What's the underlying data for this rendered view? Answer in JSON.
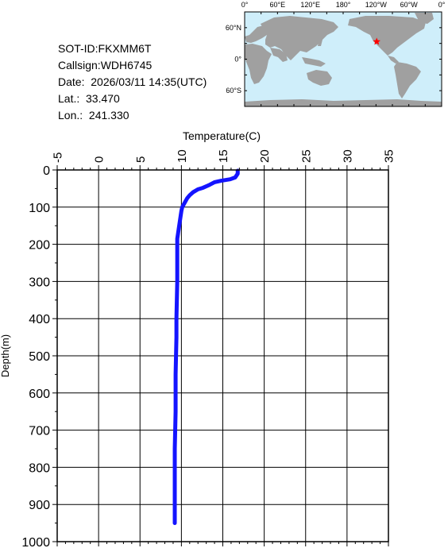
{
  "info": {
    "sot_id": "SOT-ID:FKXMM6T",
    "callsign": "Callsign:WDH6745",
    "date": "Date:  2026/03/11 14:35(UTC)",
    "lat": "Lat.:  33.470",
    "lon": "Lon.:  241.330"
  },
  "map": {
    "lon_labels": [
      "0°",
      "60°E",
      "120°E",
      "180°",
      "120°W",
      "60°W",
      "0°"
    ],
    "lat_labels": [
      "60°N",
      "0°",
      "60°S"
    ],
    "ocean_color": "#cfeefa",
    "land_color": "#a0a0a0",
    "marker": {
      "lat": 33.47,
      "lon": 241.33,
      "color": "#ff0000",
      "icon": "star-icon"
    }
  },
  "chart_data": {
    "type": "line",
    "title": "Temperature(C)",
    "xlabel": "Temperature(C)",
    "ylabel": "Depth(m)",
    "xlim": [
      -5,
      35
    ],
    "ylim": [
      1000,
      0
    ],
    "x_ticks": [
      "-5",
      "0",
      "5",
      "10",
      "15",
      "20",
      "25",
      "30",
      "35"
    ],
    "y_ticks": [
      "0",
      "100",
      "200",
      "300",
      "400",
      "500",
      "600",
      "700",
      "800",
      "900",
      "1000"
    ],
    "grid": true,
    "line_color": "#1414ff",
    "series": [
      {
        "name": "",
        "points": [
          [
            16.8,
            2
          ],
          [
            16.8,
            10
          ],
          [
            16.5,
            20
          ],
          [
            15.9,
            25
          ],
          [
            14.8,
            29
          ],
          [
            14.0,
            33
          ],
          [
            13.4,
            40
          ],
          [
            12.6,
            48
          ],
          [
            12.0,
            52
          ],
          [
            11.4,
            60
          ],
          [
            11.0,
            68
          ],
          [
            10.7,
            76
          ],
          [
            10.5,
            84
          ],
          [
            10.3,
            92
          ],
          [
            10.1,
            100
          ],
          [
            10.0,
            110
          ],
          [
            9.9,
            125
          ],
          [
            9.8,
            140
          ],
          [
            9.7,
            155
          ],
          [
            9.6,
            170
          ],
          [
            9.5,
            185
          ],
          [
            9.5,
            200
          ],
          [
            9.5,
            225
          ],
          [
            9.5,
            250
          ],
          [
            9.5,
            275
          ],
          [
            9.5,
            300
          ],
          [
            9.45,
            350
          ],
          [
            9.4,
            400
          ],
          [
            9.4,
            450
          ],
          [
            9.35,
            500
          ],
          [
            9.3,
            550
          ],
          [
            9.3,
            600
          ],
          [
            9.3,
            650
          ],
          [
            9.25,
            700
          ],
          [
            9.2,
            750
          ],
          [
            9.2,
            800
          ],
          [
            9.2,
            850
          ],
          [
            9.2,
            900
          ],
          [
            9.2,
            950
          ]
        ]
      }
    ]
  }
}
